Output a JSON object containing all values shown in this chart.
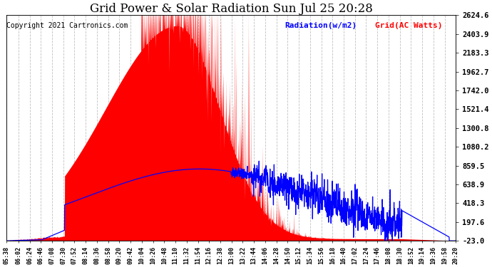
{
  "title": "Grid Power & Solar Radiation Sun Jul 25 20:28",
  "copyright": "Copyright 2021 Cartronics.com",
  "legend_radiation": "Radiation(w/m2)",
  "legend_grid": "Grid(AC Watts)",
  "legend_radiation_color": "#0000ff",
  "legend_grid_color": "#ff0000",
  "background_color": "#ffffff",
  "plot_bg_color": "#ffffff",
  "grid_color": "#c0c0c0",
  "title_fontsize": 12,
  "copyright_fontsize": 7,
  "legend_fontsize": 8,
  "ytick_fontsize": 7.5,
  "xtick_fontsize": 6,
  "right_yticks": [
    2624.6,
    2403.9,
    2183.3,
    1962.7,
    1742.0,
    1521.4,
    1300.8,
    1080.2,
    859.5,
    638.9,
    418.3,
    197.6,
    -23.0
  ],
  "ymin": -23.0,
  "ymax": 2624.6,
  "x_tick_labels": [
    "05:38",
    "06:02",
    "06:24",
    "06:46",
    "07:08",
    "07:30",
    "07:52",
    "08:14",
    "08:36",
    "08:58",
    "09:20",
    "09:42",
    "10:04",
    "10:26",
    "10:48",
    "11:10",
    "11:32",
    "11:54",
    "12:16",
    "12:38",
    "13:00",
    "13:22",
    "13:44",
    "14:06",
    "14:28",
    "14:50",
    "15:12",
    "15:34",
    "15:56",
    "16:18",
    "16:40",
    "17:02",
    "17:24",
    "17:46",
    "18:08",
    "18:30",
    "18:52",
    "19:14",
    "19:36",
    "19:58",
    "20:20"
  ]
}
